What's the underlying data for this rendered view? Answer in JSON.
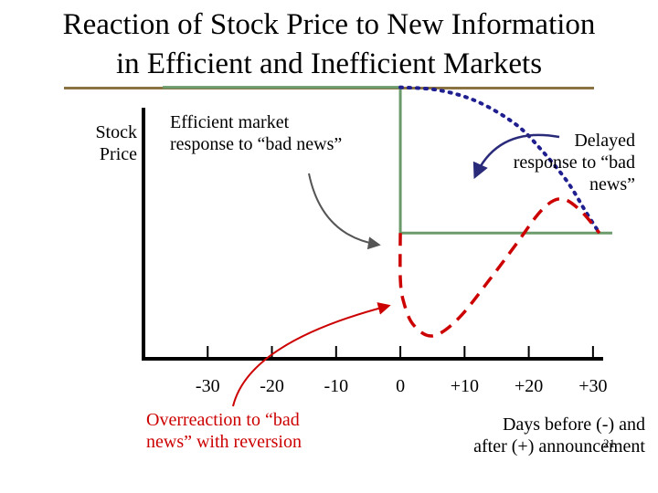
{
  "title_line1": "Reaction of Stock Price to New Information",
  "title_line2": "in Efficient and Inefficient Markets",
  "ylabel_line1": "Stock",
  "ylabel_line2": "Price",
  "annotations": {
    "efficient_line1": "Efficient market",
    "efficient_line2": "response to “bad news”",
    "delayed_line1": "Delayed",
    "delayed_line2": "response to “bad",
    "delayed_line3": "news”",
    "over_line1": "Overreaction to “bad",
    "over_line2": "news” with reversion"
  },
  "xlabel_line1": "Days before (-) and",
  "xlabel_line2": "after (+) announcement",
  "page_number": "21",
  "colors": {
    "efficient": "#6b9a6b",
    "delayed": "#1f1f8f",
    "overreaction": "#cc0000",
    "arrow_dark": "#2a2a7a",
    "arrow_red": "#cc0000",
    "title_rule": "#8a7340"
  },
  "chart_data": {
    "type": "line",
    "x_ticks": [
      -30,
      -20,
      -10,
      0,
      10,
      20,
      30
    ],
    "x_tick_labels": [
      "-30",
      "-20",
      "-10",
      "0",
      "+10",
      "+20",
      "+30"
    ],
    "xlim": [
      -40,
      35
    ],
    "ylim": [
      0,
      100
    ],
    "y_tick_labels": false,
    "grid": false,
    "series": [
      {
        "style": "solid",
        "points": [
          [
            -37,
            95
          ],
          [
            0,
            95
          ],
          [
            0,
            44
          ],
          [
            33,
            44
          ]
        ]
      },
      {
        "style": "dotted",
        "points": [
          [
            0,
            95
          ],
          [
            6,
            94
          ],
          [
            12,
            90
          ],
          [
            18,
            82
          ],
          [
            22,
            73
          ],
          [
            26,
            62
          ],
          [
            29,
            51
          ],
          [
            31,
            44
          ]
        ]
      },
      {
        "style": "dashed",
        "points": [
          [
            0,
            44
          ],
          [
            0,
            28
          ],
          [
            0.5,
            20
          ],
          [
            2,
            12
          ],
          [
            5,
            8
          ],
          [
            9,
            14
          ],
          [
            14,
            28
          ],
          [
            18,
            40
          ],
          [
            22,
            52
          ],
          [
            25,
            56
          ],
          [
            28,
            52
          ],
          [
            31,
            44
          ]
        ]
      }
    ]
  }
}
